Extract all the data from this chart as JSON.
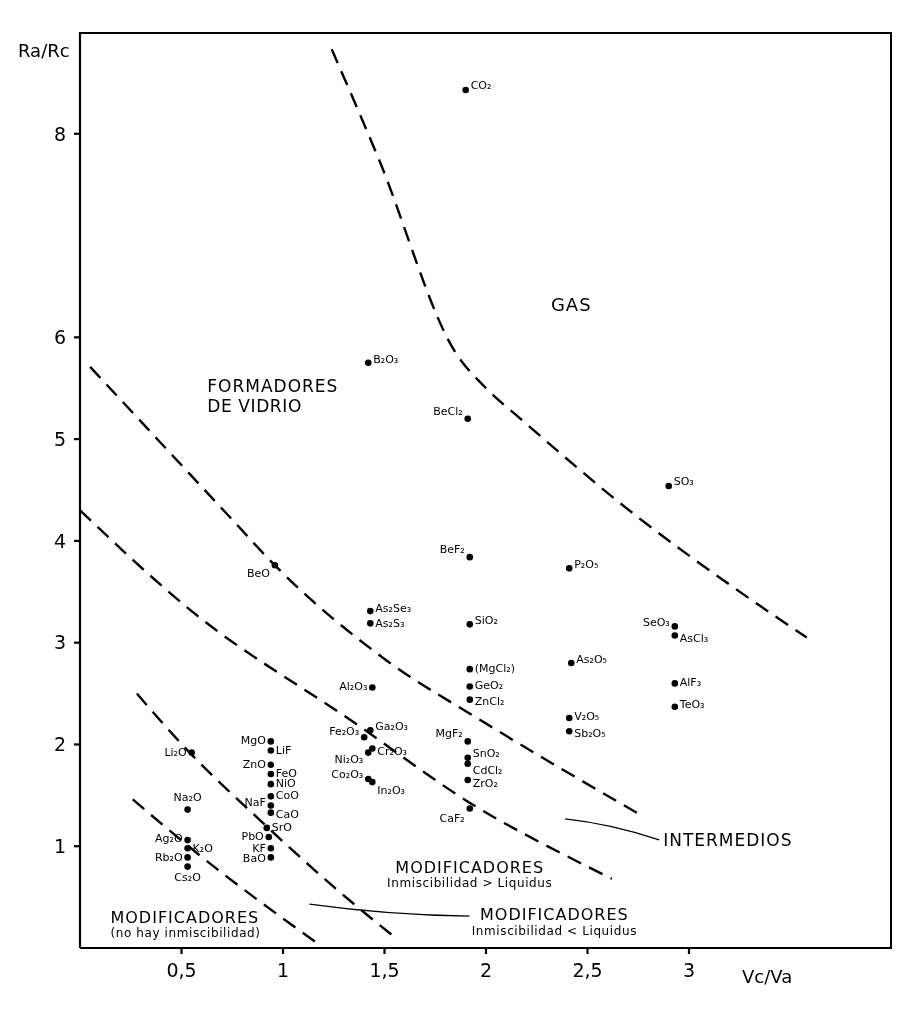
{
  "chart_data": {
    "type": "scatter",
    "xlabel": "Vc/Va",
    "ylabel": "Ra/Rc",
    "xlim": [
      0,
      4
    ],
    "ylim": [
      0,
      9
    ],
    "xticks": [
      {
        "value": 0.5,
        "label": "0,5"
      },
      1,
      {
        "value": 1.5,
        "label": "1,5"
      },
      2,
      {
        "value": 2.5,
        "label": "2,5"
      },
      3
    ],
    "yticks": [
      1,
      2,
      3,
      4,
      5,
      6,
      8
    ],
    "marker": "circle",
    "series": [
      {
        "color": "#000000",
        "x": [
          1.9,
          1.42,
          1.91,
          2.9,
          1.92,
          2.41,
          0.96,
          1.43,
          1.43,
          1.92,
          2.93,
          2.93,
          1.92,
          2.42,
          1.92,
          2.93,
          1.92,
          2.93,
          1.44,
          2.41,
          2.41,
          1.43,
          1.91,
          1.4,
          1.44,
          1.42,
          1.42,
          1.44,
          1.91,
          1.91,
          1.91,
          1.92,
          0.94,
          0.94,
          0.55,
          0.94,
          0.94,
          0.94,
          0.94,
          0.94,
          0.94,
          0.92,
          0.93,
          0.94,
          0.94,
          0.53,
          0.53,
          0.53,
          0.53,
          0.53
        ],
        "values": [
          8.43,
          5.75,
          5.2,
          4.54,
          3.84,
          3.73,
          3.76,
          3.31,
          3.19,
          3.18,
          3.16,
          3.07,
          2.74,
          2.8,
          2.57,
          2.6,
          2.44,
          2.37,
          2.56,
          2.26,
          2.13,
          2.14,
          2.03,
          2.07,
          1.96,
          1.92,
          1.66,
          1.63,
          1.87,
          1.81,
          1.65,
          1.37,
          2.03,
          1.94,
          1.92,
          1.8,
          1.71,
          1.61,
          1.49,
          1.4,
          1.33,
          1.18,
          1.09,
          0.98,
          0.89,
          1.36,
          1.06,
          0.98,
          0.89,
          0.8
        ]
      },
      {
        "type": "line",
        "color": "#000000",
        "line_style": "dashed",
        "marker": "none",
        "x": [
          1.24,
          1.47,
          1.85,
          2.0,
          2.17,
          2.75,
          3.2,
          3.58
        ],
        "values": [
          8.83,
          7.76,
          5.85,
          5.5,
          5.2,
          4.23,
          3.57,
          3.05
        ]
      },
      {
        "type": "line",
        "color": "#000000",
        "line_style": "dashed",
        "marker": "none",
        "x": [
          0.05,
          0.74,
          0.96,
          1.5,
          1.98,
          2.76
        ],
        "values": [
          5.71,
          4.23,
          3.76,
          2.84,
          2.23,
          1.31
        ]
      },
      {
        "type": "line",
        "color": "#000000",
        "line_style": "dashed",
        "marker": "none",
        "x": [
          0.0,
          0.55,
          1.34,
          1.95,
          2.45,
          2.62
        ],
        "values": [
          4.3,
          3.31,
          2.23,
          1.39,
          0.85,
          0.68
        ]
      },
      {
        "type": "line",
        "color": "#000000",
        "line_style": "dashed",
        "marker": "none",
        "x": [
          0.28,
          0.54,
          0.89,
          1.25,
          1.56
        ],
        "values": [
          2.5,
          1.92,
          1.25,
          0.6,
          0.09
        ]
      },
      {
        "type": "line",
        "color": "#000000",
        "line_style": "dashed",
        "marker": "none",
        "x": [
          0.26,
          0.59,
          1.16
        ],
        "values": [
          1.46,
          0.91,
          0.06
        ]
      }
    ],
    "annotations": [
      "GAS",
      "FORMADORES\nDE VIDRIO",
      "MODIFICADORES\nInmiscibilidad > Liquidus",
      "MODIFICADORES\n(no hay inmiscibilidad)",
      "INTERMEDIOS",
      "MODIFICADORES\nInmiscibilidad < Liquidus",
      {
        "text": "CO₂",
        "x": 1.9,
        "y": 8.43
      },
      {
        "text": "B₂O₃",
        "x": 1.42,
        "y": 5.75
      },
      {
        "text": "BeCl₂",
        "x": 1.91,
        "y": 5.2
      },
      {
        "text": "SO₃",
        "x": 2.9,
        "y": 4.54
      },
      {
        "text": "BeF₂",
        "x": 1.92,
        "y": 3.84
      },
      {
        "text": "P₂O₅",
        "x": 2.41,
        "y": 3.73
      },
      {
        "text": "BeO",
        "x": 0.96,
        "y": 3.76
      },
      {
        "text": "As₂Se₃",
        "x": 1.43,
        "y": 3.31
      },
      {
        "text": "As₂S₃",
        "x": 1.43,
        "y": 3.19
      },
      {
        "text": "SiO₂",
        "x": 1.92,
        "y": 3.18
      },
      {
        "text": "SeO₃",
        "x": 2.93,
        "y": 3.16
      },
      {
        "text": "AsCl₃",
        "x": 2.93,
        "y": 3.07
      },
      {
        "text": "(MgCl₂)",
        "x": 1.92,
        "y": 2.74
      },
      {
        "text": "As₂O₅",
        "x": 2.42,
        "y": 2.8
      },
      {
        "text": "GeO₂",
        "x": 1.92,
        "y": 2.57
      },
      {
        "text": "AlF₃",
        "x": 2.93,
        "y": 2.6
      },
      {
        "text": "ZnCl₂",
        "x": 1.92,
        "y": 2.44
      },
      {
        "text": "TeO₃",
        "x": 2.93,
        "y": 2.37
      },
      {
        "text": "Al₂O₃",
        "x": 1.44,
        "y": 2.56
      },
      {
        "text": "V₂O₅",
        "x": 2.41,
        "y": 2.26
      },
      {
        "text": "Sb₂O₅",
        "x": 2.41,
        "y": 2.13
      },
      {
        "text": "Ga₂O₃",
        "x": 1.43,
        "y": 2.14
      },
      {
        "text": "MgF₂",
        "x": 1.91,
        "y": 2.03
      },
      {
        "text": "Fe₂O₃",
        "x": 1.4,
        "y": 2.07
      },
      {
        "text": "Cr₂O₃",
        "x": 1.44,
        "y": 1.96
      },
      {
        "text": "Ni₂O₃",
        "x": 1.42,
        "y": 1.92
      },
      {
        "text": "Co₂O₃",
        "x": 1.42,
        "y": 1.66
      },
      {
        "text": "In₂O₃",
        "x": 1.44,
        "y": 1.63
      },
      {
        "text": "SnO₂",
        "x": 1.91,
        "y": 1.87
      },
      {
        "text": "CdCl₂",
        "x": 1.91,
        "y": 1.81
      },
      {
        "text": "ZrO₂",
        "x": 1.91,
        "y": 1.65
      },
      {
        "text": "CaF₂",
        "x": 1.92,
        "y": 1.37
      },
      {
        "text": "MgO",
        "x": 0.94,
        "y": 2.03
      },
      {
        "text": "LiF",
        "x": 0.94,
        "y": 1.94
      },
      {
        "text": "Li₂O",
        "x": 0.55,
        "y": 1.92
      },
      {
        "text": "ZnO",
        "x": 0.94,
        "y": 1.8
      },
      {
        "text": "FeO",
        "x": 0.94,
        "y": 1.71
      },
      {
        "text": "NiO",
        "x": 0.94,
        "y": 1.61
      },
      {
        "text": "CoO",
        "x": 0.94,
        "y": 1.49
      },
      {
        "text": "NaF",
        "x": 0.94,
        "y": 1.4
      },
      {
        "text": "CaO",
        "x": 0.94,
        "y": 1.33
      },
      {
        "text": "SrO",
        "x": 0.92,
        "y": 1.18
      },
      {
        "text": "PbO",
        "x": 0.93,
        "y": 1.09
      },
      {
        "text": "KF",
        "x": 0.94,
        "y": 0.98
      },
      {
        "text": "BaO",
        "x": 0.94,
        "y": 0.89
      },
      {
        "text": "Na₂O",
        "x": 0.53,
        "y": 1.36
      },
      {
        "text": "Ag₂O",
        "x": 0.53,
        "y": 1.06
      },
      {
        "text": "K₂O",
        "x": 0.53,
        "y": 0.98
      },
      {
        "text": "Rb₂O",
        "x": 0.53,
        "y": 0.89
      },
      {
        "text": "Cs₂O",
        "x": 0.53,
        "y": 0.8
      }
    ]
  }
}
